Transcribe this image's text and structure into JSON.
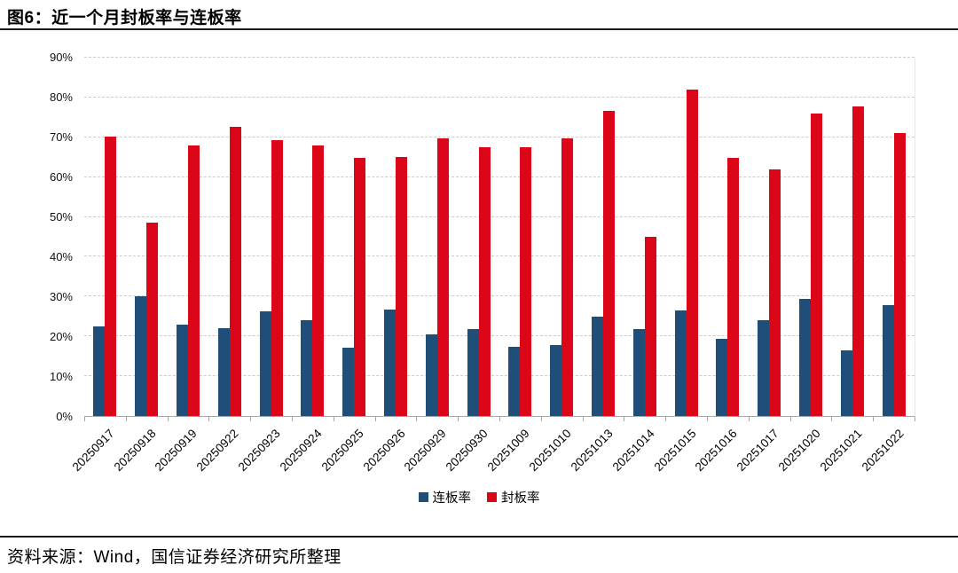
{
  "figure": {
    "title": "图6：近一个月封板率与连板率",
    "source": "资料来源：Wind，国信证券经济研究所整理"
  },
  "chart_data": {
    "type": "bar",
    "title": "近一个月封板率与连板率",
    "categories": [
      "20250917",
      "20250918",
      "20250919",
      "20250922",
      "20250923",
      "20250924",
      "20250925",
      "20250926",
      "20250929",
      "20250930",
      "20251009",
      "20251010",
      "20251013",
      "20251014",
      "20251015",
      "20251016",
      "20251017",
      "20251020",
      "20251021",
      "20251022"
    ],
    "series": [
      {
        "name": "连板率",
        "color": "#1F4E79",
        "values": [
          22.5,
          30.0,
          23.0,
          22.0,
          26.4,
          24.0,
          17.2,
          26.8,
          20.5,
          21.8,
          17.4,
          17.8,
          25.0,
          21.8,
          26.6,
          19.3,
          24.0,
          29.3,
          16.4,
          27.9
        ]
      },
      {
        "name": "封板率",
        "color": "#DB0718",
        "values": [
          70.2,
          48.6,
          67.9,
          72.7,
          69.2,
          67.9,
          64.9,
          65.0,
          69.8,
          67.6,
          67.5,
          69.8,
          76.7,
          45.0,
          82.0,
          64.9,
          61.9,
          76.0,
          77.7,
          71.0
        ]
      }
    ],
    "xlabel": "",
    "ylabel": "",
    "ylim": [
      0,
      90
    ],
    "ytick_step": 10,
    "ytick_suffix": "%",
    "grid": "horizontal-dashed",
    "legend_position": "bottom"
  }
}
